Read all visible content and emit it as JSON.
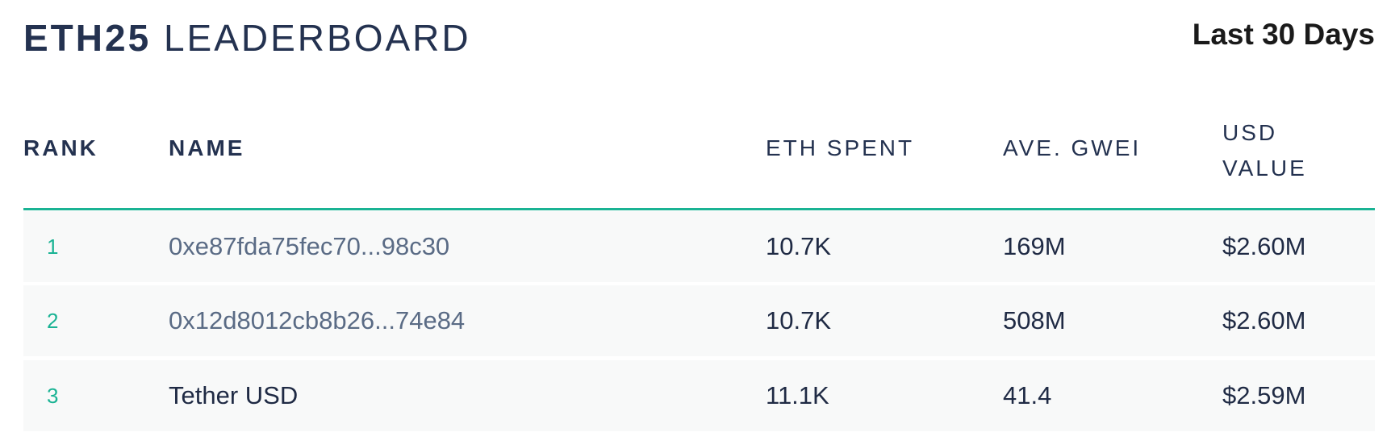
{
  "header": {
    "title_bold": "ETH25",
    "title_rest": "LEADERBOARD",
    "period": "Last 30 Days"
  },
  "table": {
    "columns": [
      "RANK",
      "NAME",
      "ETH SPENT",
      "AVE. GWEI",
      "USD VALUE"
    ],
    "rows": [
      [
        "1",
        "0xe87fda75fec70...98c30",
        "10.7K",
        "169M",
        "$2.60M"
      ],
      [
        "2",
        "0x12d8012cb8b26...74e84",
        "10.7K",
        "508M",
        "$2.60M"
      ],
      [
        "3",
        "Tether USD",
        "11.1K",
        "41.4",
        "$2.59M"
      ]
    ],
    "link_names": [
      true,
      true,
      false
    ]
  }
}
